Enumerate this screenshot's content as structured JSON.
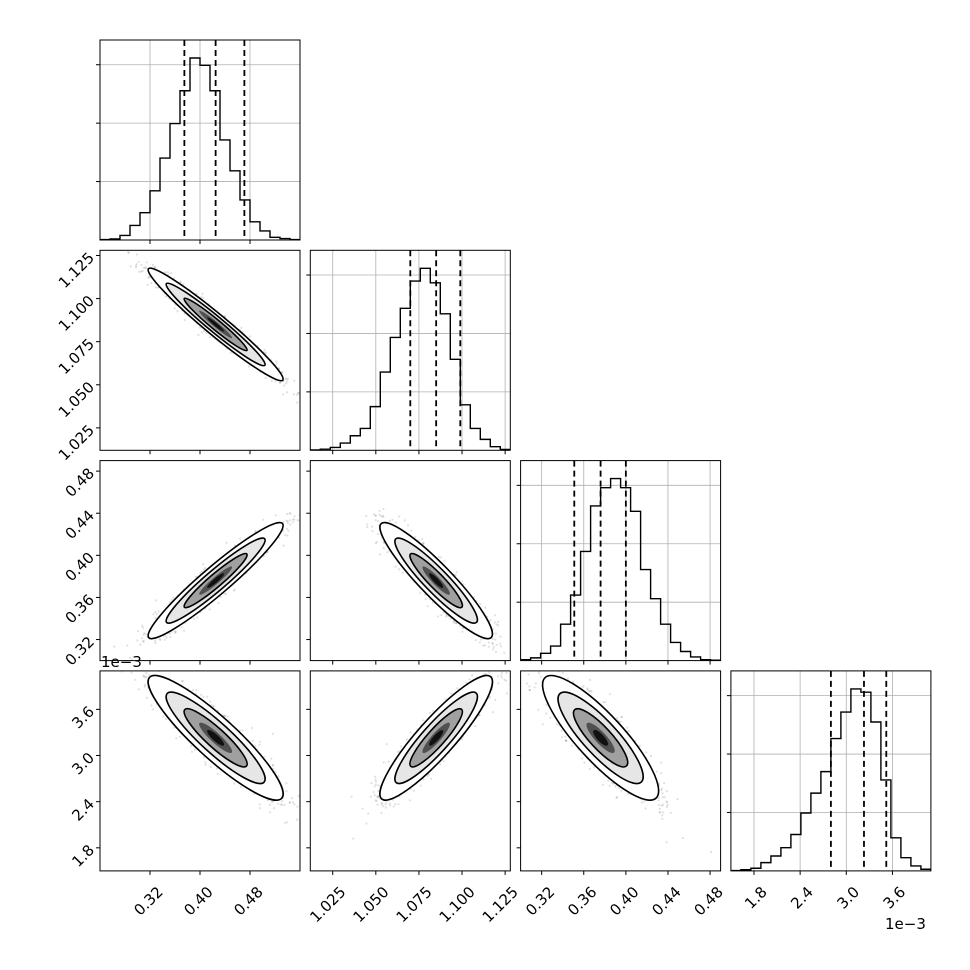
{
  "chart_data": {
    "type": "corner",
    "params": [
      {
        "ticks": [
          0.32,
          0.4,
          0.48
        ],
        "tick_labels": [
          "0.32",
          "0.40",
          "0.48"
        ],
        "range": [
          0.24,
          0.56
        ],
        "quantiles": [
          0.375,
          0.425,
          0.471
        ]
      },
      {
        "ticks": [
          1.025,
          1.05,
          1.075,
          1.1,
          1.125
        ],
        "tick_labels": [
          "1.025",
          "1.050",
          "1.075",
          "1.100",
          "1.125"
        ],
        "range": [
          1.012,
          1.128
        ],
        "quantiles": [
          1.07,
          1.085,
          1.099
        ]
      },
      {
        "ticks": [
          0.32,
          0.36,
          0.4,
          0.44,
          0.48
        ],
        "tick_labels": [
          "0.32",
          "0.36",
          "0.40",
          "0.44",
          "0.48"
        ],
        "range": [
          0.3,
          0.49
        ],
        "quantiles": [
          0.351,
          0.376,
          0.4
        ]
      },
      {
        "ticks": [
          1.8,
          2.4,
          3.0,
          3.6
        ],
        "tick_labels": [
          "1.8",
          "2.4",
          "3.0",
          "3.6"
        ],
        "range": [
          1.5,
          4.1
        ],
        "quantiles": [
          2.8,
          3.23,
          3.52
        ],
        "offset_label": "1e−3"
      }
    ],
    "histograms": [
      [
        0.2,
        0.6,
        2.5,
        8,
        15,
        27,
        45,
        64,
        82,
        100,
        96,
        82,
        55,
        38,
        22,
        10,
        5,
        1.5,
        0.8,
        0.2
      ],
      [
        0.2,
        0.6,
        1.6,
        4,
        8,
        12,
        24,
        43,
        62,
        78,
        93,
        100,
        92,
        75,
        50,
        25,
        12,
        6,
        2,
        0.5
      ],
      [
        0.5,
        1.5,
        4,
        8,
        20,
        36,
        60,
        85,
        95,
        100,
        95,
        82,
        50,
        34,
        20,
        10,
        5,
        2,
        0.5,
        0.2
      ],
      [
        0.2,
        0.7,
        1.6,
        5,
        9,
        14,
        22,
        35,
        47,
        60,
        80,
        96,
        110,
        108,
        90,
        55,
        20,
        8,
        3,
        1
      ]
    ],
    "correlations": [
      [
        1,
        -0.97,
        0.95,
        -0.9
      ],
      [
        -0.97,
        1,
        -0.92,
        0.9
      ],
      [
        0.95,
        -0.92,
        1,
        -0.85
      ],
      [
        -0.9,
        0.9,
        -0.85,
        1
      ]
    ],
    "colors": {
      "line": "#000000",
      "grid": "#b0b0b0",
      "points": "#000000",
      "density": "#000000"
    }
  }
}
